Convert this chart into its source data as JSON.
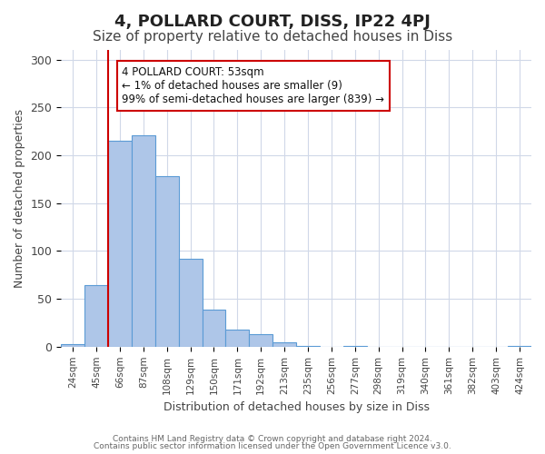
{
  "title": "4, POLLARD COURT, DISS, IP22 4PJ",
  "subtitle": "Size of property relative to detached houses in Diss",
  "xlabel": "Distribution of detached houses by size in Diss",
  "ylabel": "Number of detached properties",
  "bar_values": [
    3,
    64,
    215,
    221,
    178,
    92,
    39,
    18,
    13,
    5,
    1,
    0,
    1,
    0,
    0,
    0,
    0,
    0,
    0,
    1
  ],
  "bar_labels": [
    "24sqm",
    "45sqm",
    "66sqm",
    "87sqm",
    "108sqm",
    "129sqm",
    "150sqm",
    "171sqm",
    "192sqm",
    "213sqm",
    "235sqm",
    "256sqm",
    "277sqm",
    "298sqm",
    "319sqm",
    "340sqm",
    "361sqm",
    "382sqm",
    "403sqm",
    "424sqm"
  ],
  "bar_color": "#aec6e8",
  "bar_edge_color": "#5b9bd5",
  "grid_color": "#d0d8e8",
  "background_color": "#ffffff",
  "vline_color": "#cc0000",
  "annotation_title": "4 POLLARD COURT: 53sqm",
  "annotation_line1": "← 1% of detached houses are smaller (9)",
  "annotation_line2": "99% of semi-detached houses are larger (839) →",
  "annotation_box_color": "#ffffff",
  "annotation_box_edge": "#cc0000",
  "ylim": [
    0,
    310
  ],
  "yticks": [
    0,
    50,
    100,
    150,
    200,
    250,
    300
  ],
  "footer1": "Contains HM Land Registry data © Crown copyright and database right 2024.",
  "footer2": "Contains public sector information licensed under the Open Government Licence v3.0.",
  "title_fontsize": 13,
  "subtitle_fontsize": 11,
  "bar_width": 1.0,
  "vline_pos": 1.5
}
